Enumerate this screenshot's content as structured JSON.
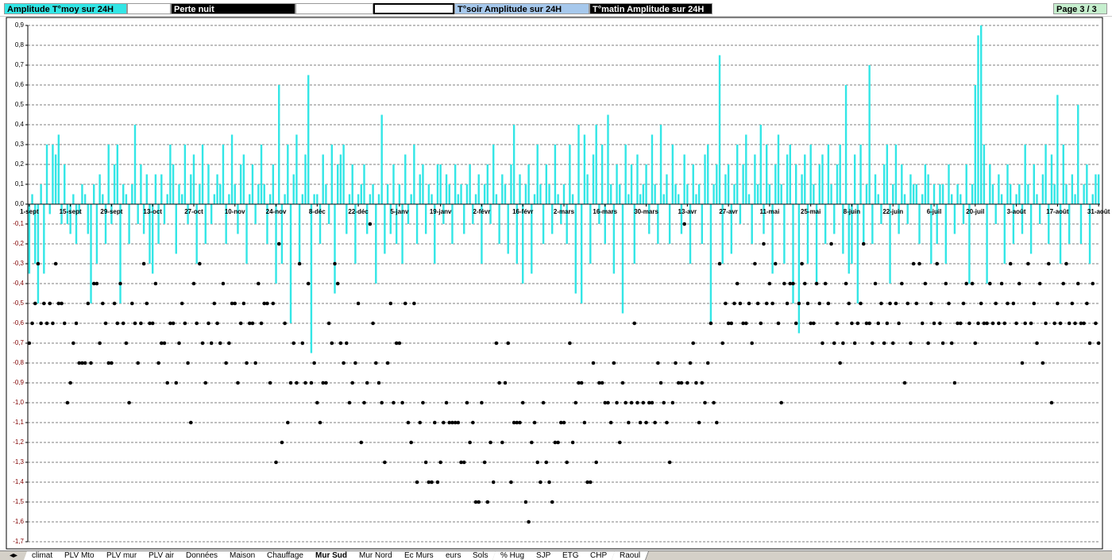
{
  "header": {
    "items": [
      "T°soir Amplitude sur 24H",
      "T°matin Amplitude sur 24H",
      "Page 3 / 3"
    ]
  },
  "tabs": {
    "items": [
      "climat",
      "PLV Mto",
      "PLV mur",
      "PLV air",
      "Données",
      "Maison",
      "Chauffage",
      "Mur Sud",
      "Mur Nord",
      "Ec Murs",
      "eurs",
      "Sols",
      "% Hug",
      "SJP",
      "ETG",
      "CHP",
      "Raoul"
    ],
    "active": "Mur Sud"
  },
  "chart_data": {
    "type": "bar",
    "grid": true,
    "negative_label_color": "#800000",
    "ylim": [
      -1.7,
      0.9
    ],
    "yticks": [
      {
        "value": 0.9,
        "label": "0,9"
      },
      {
        "value": 0.8,
        "label": "0,8"
      },
      {
        "value": 0.7,
        "label": "0,7"
      },
      {
        "value": 0.6,
        "label": "0,6"
      },
      {
        "value": 0.5,
        "label": "0,5"
      },
      {
        "value": 0.4,
        "label": "0,4"
      },
      {
        "value": 0.3,
        "label": "0,3"
      },
      {
        "value": 0.2,
        "label": "0,2"
      },
      {
        "value": 0.1,
        "label": "0,1"
      },
      {
        "value": 0,
        "label": "0,0"
      },
      {
        "value": -0.1,
        "label": "-0,1"
      },
      {
        "value": -0.2,
        "label": "-0,2"
      },
      {
        "value": -0.3,
        "label": "-0,3"
      },
      {
        "value": -0.4,
        "label": "-0,4"
      },
      {
        "value": -0.5,
        "label": "-0,5"
      },
      {
        "value": -0.6,
        "label": "-0,6"
      },
      {
        "value": -0.7,
        "label": "-0,7"
      },
      {
        "value": -0.8,
        "label": "-0,8"
      },
      {
        "value": -0.9,
        "label": "-0,9"
      },
      {
        "value": -1.0,
        "label": "-1,0"
      },
      {
        "value": -1.1,
        "label": "-1,1"
      },
      {
        "value": -1.2,
        "label": "-1,2"
      },
      {
        "value": -1.3,
        "label": "-1,3"
      },
      {
        "value": -1.4,
        "label": "-1,4"
      },
      {
        "value": -1.5,
        "label": "-1,5"
      },
      {
        "value": -1.6,
        "label": "-1,6"
      },
      {
        "value": -1.7,
        "label": "-1,7"
      }
    ],
    "categories": [
      "1-sept",
      null,
      null,
      null,
      null,
      null,
      null,
      null,
      null,
      null,
      null,
      null,
      null,
      null,
      "15-sept",
      null,
      null,
      null,
      null,
      null,
      null,
      null,
      null,
      null,
      null,
      null,
      null,
      null,
      "29-sept",
      null,
      null,
      null,
      null,
      null,
      null,
      null,
      null,
      null,
      null,
      null,
      null,
      null,
      "13-oct",
      null,
      null,
      null,
      null,
      null,
      null,
      null,
      null,
      null,
      null,
      null,
      null,
      null,
      "27-oct",
      null,
      null,
      null,
      null,
      null,
      null,
      null,
      null,
      null,
      null,
      null,
      null,
      null,
      "10-nov",
      null,
      null,
      null,
      null,
      null,
      null,
      null,
      null,
      null,
      null,
      null,
      null,
      null,
      "24-nov",
      null,
      null,
      null,
      null,
      null,
      null,
      null,
      null,
      null,
      null,
      null,
      null,
      null,
      "8-déc",
      null,
      null,
      null,
      null,
      null,
      null,
      null,
      null,
      null,
      null,
      null,
      null,
      null,
      "22-déc",
      null,
      null,
      null,
      null,
      null,
      null,
      null,
      null,
      null,
      null,
      null,
      null,
      null,
      "5-janv",
      null,
      null,
      null,
      null,
      null,
      null,
      null,
      null,
      null,
      null,
      null,
      null,
      null,
      "19-janv",
      null,
      null,
      null,
      null,
      null,
      null,
      null,
      null,
      null,
      null,
      null,
      null,
      null,
      "2-févr",
      null,
      null,
      null,
      null,
      null,
      null,
      null,
      null,
      null,
      null,
      null,
      null,
      null,
      "16-févr",
      null,
      null,
      null,
      null,
      null,
      null,
      null,
      null,
      null,
      null,
      null,
      null,
      null,
      "2-mars",
      null,
      null,
      null,
      null,
      null,
      null,
      null,
      null,
      null,
      null,
      null,
      null,
      null,
      "16-mars",
      null,
      null,
      null,
      null,
      null,
      null,
      null,
      null,
      null,
      null,
      null,
      null,
      null,
      "30-mars",
      null,
      null,
      null,
      null,
      null,
      null,
      null,
      null,
      null,
      null,
      null,
      null,
      null,
      "13-avr",
      null,
      null,
      null,
      null,
      null,
      null,
      null,
      null,
      null,
      null,
      null,
      null,
      null,
      "27-avr",
      null,
      null,
      null,
      null,
      null,
      null,
      null,
      null,
      null,
      null,
      null,
      null,
      null,
      "11-mai",
      null,
      null,
      null,
      null,
      null,
      null,
      null,
      null,
      null,
      null,
      null,
      null,
      null,
      "25-mai",
      null,
      null,
      null,
      null,
      null,
      null,
      null,
      null,
      null,
      null,
      null,
      null,
      null,
      "8-juin",
      null,
      null,
      null,
      null,
      null,
      null,
      null,
      null,
      null,
      null,
      null,
      null,
      null,
      "22-juin",
      null,
      null,
      null,
      null,
      null,
      null,
      null,
      null,
      null,
      null,
      null,
      null,
      null,
      "6-juil",
      null,
      null,
      null,
      null,
      null,
      null,
      null,
      null,
      null,
      null,
      null,
      null,
      null,
      "20-juil",
      null,
      null,
      null,
      null,
      null,
      null,
      null,
      null,
      null,
      null,
      null,
      null,
      null,
      "3-août",
      null,
      null,
      null,
      null,
      null,
      null,
      null,
      null,
      null,
      null,
      null,
      null,
      null,
      "17-août",
      null,
      null,
      null,
      null,
      null,
      null,
      null,
      null,
      null,
      null,
      null,
      null,
      null,
      "31-août"
    ],
    "series": [
      {
        "name": "Amplitude T°moy sur 24H",
        "color": "#33e6e6",
        "bg": "#33e6e6",
        "text_color": "#000000",
        "style": "bar",
        "values": [
          -0.35,
          0.05,
          -0.3,
          -0.5,
          0.1,
          -0.35,
          0.3,
          -0.05,
          0.3,
          0.25,
          0.35,
          -0.1,
          0.2,
          -0.1,
          -0.15,
          0.05,
          -0.2,
          -0.05,
          0.1,
          0.05,
          -0.15,
          -0.5,
          0.1,
          -0.3,
          0.15,
          0.05,
          -0.2,
          0.3,
          -0.1,
          0.2,
          0.3,
          -0.5,
          0.1,
          0.05,
          -0.2,
          0.1,
          0.4,
          -0.1,
          0.2,
          -0.15,
          0.15,
          -0.3,
          -0.35,
          0.15,
          -0.2,
          0.15,
          -0.1,
          0.05,
          0.3,
          0.2,
          -0.25,
          0.1,
          0.05,
          0.3,
          -0.1,
          0.15,
          0.25,
          -0.3,
          0.1,
          0.3,
          -0.2,
          0.2,
          -0.1,
          0.05,
          0.15,
          0.1,
          0.3,
          -0.2,
          0.05,
          0.35,
          0.1,
          -0.15,
          0.2,
          0.25,
          -0.3,
          0.05,
          0.2,
          -0.1,
          0.1,
          0.3,
          0.1,
          -0.2,
          0.05,
          0.2,
          -0.4,
          0.6,
          -0.3,
          0.05,
          0.3,
          -0.6,
          0.15,
          0.35,
          -0.3,
          0.05,
          0.25,
          0.65,
          -0.75,
          0.05,
          0.05,
          -0.2,
          0.25,
          0.1,
          -0.1,
          0.3,
          -0.45,
          0.2,
          0.25,
          0.3,
          -0.15,
          0.05,
          0.2,
          -0.3,
          0.05,
          0.1,
          0.2,
          -0.15,
          0.05,
          0.1,
          -0.4,
          0.05,
          0.45,
          -0.25,
          0.1,
          -0.15,
          0.2,
          -0.2,
          0.1,
          -0.3,
          0.25,
          -0.1,
          0.05,
          0.3,
          -0.2,
          0.15,
          0.2,
          -0.15,
          0.1,
          0.05,
          -0.3,
          0.2,
          0.2,
          -0.1,
          0.15,
          0.1,
          -0.2,
          0.2,
          0.05,
          0.1,
          -0.15,
          0.1,
          0.2,
          -0.1,
          0.05,
          0.15,
          -0.3,
          0.1,
          0.2,
          -0.1,
          0.3,
          0.05,
          -0.2,
          0.15,
          0.1,
          -0.25,
          0.2,
          0.4,
          -0.3,
          0.15,
          -0.4,
          0.1,
          0.2,
          -0.35,
          0.05,
          0.3,
          0.1,
          -0.2,
          0.2,
          0.1,
          -0.15,
          0.3,
          0.05,
          -0.1,
          0.1,
          -0.2,
          0.3,
          0.05,
          -0.45,
          0.4,
          -0.5,
          0.35,
          0.15,
          -0.3,
          0.25,
          0.4,
          -0.1,
          0.3,
          -0.2,
          0.45,
          0.1,
          -0.35,
          0.2,
          0.1,
          -0.55,
          0.3,
          0.05,
          0.2,
          -0.3,
          0.25,
          0.05,
          0.1,
          0.2,
          -0.15,
          0.35,
          0.1,
          -0.2,
          0.4,
          0.05,
          0.15,
          -0.2,
          0.3,
          0.1,
          0.05,
          -0.15,
          0.25,
          0.1,
          -0.3,
          0.2,
          0.05,
          0.1,
          -0.2,
          0.25,
          0.3,
          -0.6,
          0.1,
          0.2,
          0.75,
          -0.3,
          0.15,
          0.2,
          -0.25,
          0.1,
          0.3,
          -0.1,
          0.2,
          0.35,
          0.05,
          -0.2,
          0.25,
          0.1,
          0.4,
          -0.15,
          0.3,
          0.1,
          -0.35,
          0.2,
          0.35,
          0.1,
          -0.3,
          0.25,
          0.3,
          -0.5,
          0.2,
          -0.65,
          0.15,
          0.25,
          -0.3,
          0.3,
          0.1,
          -0.4,
          0.2,
          0.25,
          -0.2,
          0.3,
          0.1,
          -0.15,
          0.2,
          0.3,
          -0.25,
          0.6,
          -0.35,
          -0.3,
          0.25,
          -0.5,
          0.3,
          -0.2,
          0.1,
          0.7,
          -0.2,
          0.15,
          0.05,
          -0.1,
          0.2,
          0.3,
          -0.4,
          0.1,
          0.3,
          -0.15,
          0.2,
          0.05,
          -0.1,
          0.15,
          0.1,
          0.1,
          -0.2,
          0.05,
          0.2,
          0.15,
          -0.3,
          0.1,
          -0.2,
          0.1,
          0.1,
          -0.3,
          0.2,
          0.05,
          -0.15,
          0.1,
          0.05,
          -0.1,
          0.2,
          -0.4,
          0.1,
          0.6,
          0.85,
          0.9,
          0.3,
          -0.4,
          0.2,
          0.1,
          -0.1,
          0.15,
          0.05,
          -0.3,
          0.2,
          0.1,
          -0.2,
          0.05,
          0.1,
          -0.15,
          0.3,
          0.1,
          -0.25,
          0.2,
          0.05,
          -0.1,
          0.15,
          0.3,
          -0.2,
          0.25,
          0.1,
          0.55,
          -0.3,
          0.3,
          0.1,
          -0.2,
          0.15,
          0.05,
          0.5,
          -0.2,
          0.1,
          0.2,
          -0.3,
          0.05,
          0.15,
          0.15
        ]
      },
      {
        "name": "Perte nuit",
        "color": "#000000",
        "bg": "#000000",
        "text_color": "#ffffff",
        "style": "dot",
        "values": [
          -0.7,
          -0.6,
          -0.5,
          -0.3,
          -0.6,
          -0.5,
          -0.6,
          -0.5,
          -0.6,
          -0.3,
          -0.5,
          -0.5,
          -0.6,
          -1.0,
          -0.9,
          -0.7,
          -0.6,
          -0.8,
          -0.8,
          -0.8,
          -0.5,
          -0.8,
          -0.4,
          -0.4,
          -0.7,
          -0.5,
          -0.6,
          -0.8,
          -0.8,
          -0.5,
          -0.6,
          -0.4,
          -0.6,
          -0.7,
          -1.0,
          -0.5,
          -0.6,
          -0.8,
          -0.6,
          -0.3,
          -0.5,
          -0.6,
          -0.6,
          -0.4,
          -0.8,
          -0.7,
          -0.7,
          -0.9,
          -0.6,
          -0.6,
          -0.9,
          -0.7,
          -0.5,
          -0.6,
          -0.8,
          -1.1,
          -0.4,
          -0.6,
          -0.3,
          -0.7,
          -0.9,
          -0.6,
          -0.7,
          -0.5,
          -0.6,
          -0.7,
          -0.4,
          -0.8,
          -0.7,
          -0.5,
          -0.5,
          -0.9,
          -0.6,
          -0.5,
          -0.8,
          -0.6,
          -0.6,
          -0.8,
          -0.4,
          -0.6,
          -0.5,
          -0.5,
          -0.9,
          -0.5,
          -1.3,
          -0.2,
          -1.2,
          -0.6,
          -1.1,
          -0.9,
          -0.7,
          -0.9,
          -0.3,
          -0.7,
          -0.9,
          -0.4,
          -0.9,
          -0.8,
          -1.0,
          -1.1,
          -0.9,
          -0.9,
          -0.6,
          -0.7,
          -0.3,
          -0.4,
          -0.7,
          -0.8,
          -0.7,
          -1.0,
          -0.9,
          -0.8,
          -0.5,
          -1.2,
          -1.0,
          -0.9,
          -0.1,
          -0.6,
          -0.8,
          -0.9,
          -1.0,
          -1.3,
          -0.8,
          -0.5,
          -1.0,
          -0.7,
          -0.7,
          -1.0,
          -0.5,
          -1.1,
          -1.2,
          -0.5,
          -1.4,
          -1.1,
          -1.0,
          -1.3,
          -1.4,
          -1.4,
          -1.1,
          -1.4,
          -1.3,
          -1.1,
          -1.0,
          -1.1,
          -1.1,
          -1.1,
          -1.1,
          -1.3,
          -1.3,
          -1.0,
          -1.2,
          -1.1,
          -1.5,
          -1.5,
          -1.0,
          -1.3,
          -1.5,
          -1.2,
          -1.4,
          -0.7,
          -0.9,
          -1.2,
          -0.9,
          -0.7,
          -1.4,
          -1.1,
          -1.1,
          -1.1,
          -1.0,
          -1.5,
          -1.6,
          -1.2,
          -1.1,
          -1.3,
          -1.4,
          -1.0,
          -1.3,
          -1.4,
          -1.5,
          -1.2,
          -1.2,
          -1.1,
          -1.1,
          -1.3,
          -0.7,
          -1.2,
          -1.0,
          -0.9,
          -0.9,
          -1.1,
          -1.4,
          -1.4,
          -0.8,
          -1.3,
          -0.9,
          -0.9,
          -1.0,
          -1.0,
          -1.1,
          -0.8,
          -1.0,
          -1.2,
          -0.9,
          -1.0,
          -1.1,
          -1.0,
          -0.6,
          -1.0,
          -1.1,
          -1.0,
          -1.1,
          -1.0,
          -1.0,
          -1.1,
          -0.8,
          -0.9,
          -1.0,
          -1.1,
          -1.3,
          -1.0,
          -0.8,
          -0.9,
          -0.9,
          -0.1,
          -0.9,
          -0.8,
          -0.7,
          -0.9,
          -1.1,
          -0.9,
          -1.0,
          -0.8,
          -0.6,
          -1.0,
          -1.1,
          -0.3,
          -0.7,
          -0.5,
          -0.6,
          -0.6,
          -0.5,
          -0.4,
          -0.5,
          -0.6,
          -0.6,
          -0.5,
          -0.7,
          -0.3,
          -0.5,
          -0.6,
          -0.2,
          -0.5,
          -0.4,
          -0.5,
          -0.3,
          -0.6,
          -1.0,
          -0.4,
          -0.5,
          -0.4,
          -0.4,
          -0.6,
          -0.5,
          -0.3,
          -0.4,
          -0.5,
          -0.6,
          -0.6,
          -0.4,
          -0.5,
          -0.7,
          -0.4,
          -0.5,
          -0.2,
          -0.7,
          -0.6,
          -0.8,
          -0.7,
          -0.4,
          -0.5,
          -0.6,
          -0.7,
          -0.6,
          -0.5,
          -0.2,
          -0.6,
          -0.6,
          -0.7,
          -0.4,
          -0.6,
          -0.5,
          -0.7,
          -0.6,
          -0.5,
          -0.7,
          -0.5,
          -0.6,
          -0.4,
          -0.9,
          -0.5,
          -0.7,
          -0.3,
          -0.5,
          -0.3,
          -0.6,
          -0.4,
          -0.7,
          -0.5,
          -0.6,
          -0.3,
          -0.6,
          -0.7,
          -0.4,
          -0.5,
          -0.7,
          -0.9,
          -0.6,
          -0.6,
          -0.5,
          -0.4,
          -0.6,
          -0.4,
          -0.7,
          -0.6,
          -0.5,
          -0.6,
          -0.6,
          -0.4,
          -0.6,
          -0.5,
          -0.6,
          -0.4,
          -0.6,
          -0.5,
          -0.3,
          -0.5,
          -0.6,
          -0.4,
          -0.8,
          -0.6,
          -0.3,
          -0.6,
          -0.5,
          -0.7,
          -0.4,
          -0.8,
          -0.6,
          -0.3,
          -1.0,
          -0.6,
          -0.5,
          -0.6,
          -0.4,
          -0.3,
          -0.6,
          -0.5,
          -0.6,
          -0.4,
          -0.6,
          -0.6,
          -0.5,
          -0.7,
          -0.4,
          -0.6,
          -0.7
        ]
      }
    ]
  }
}
